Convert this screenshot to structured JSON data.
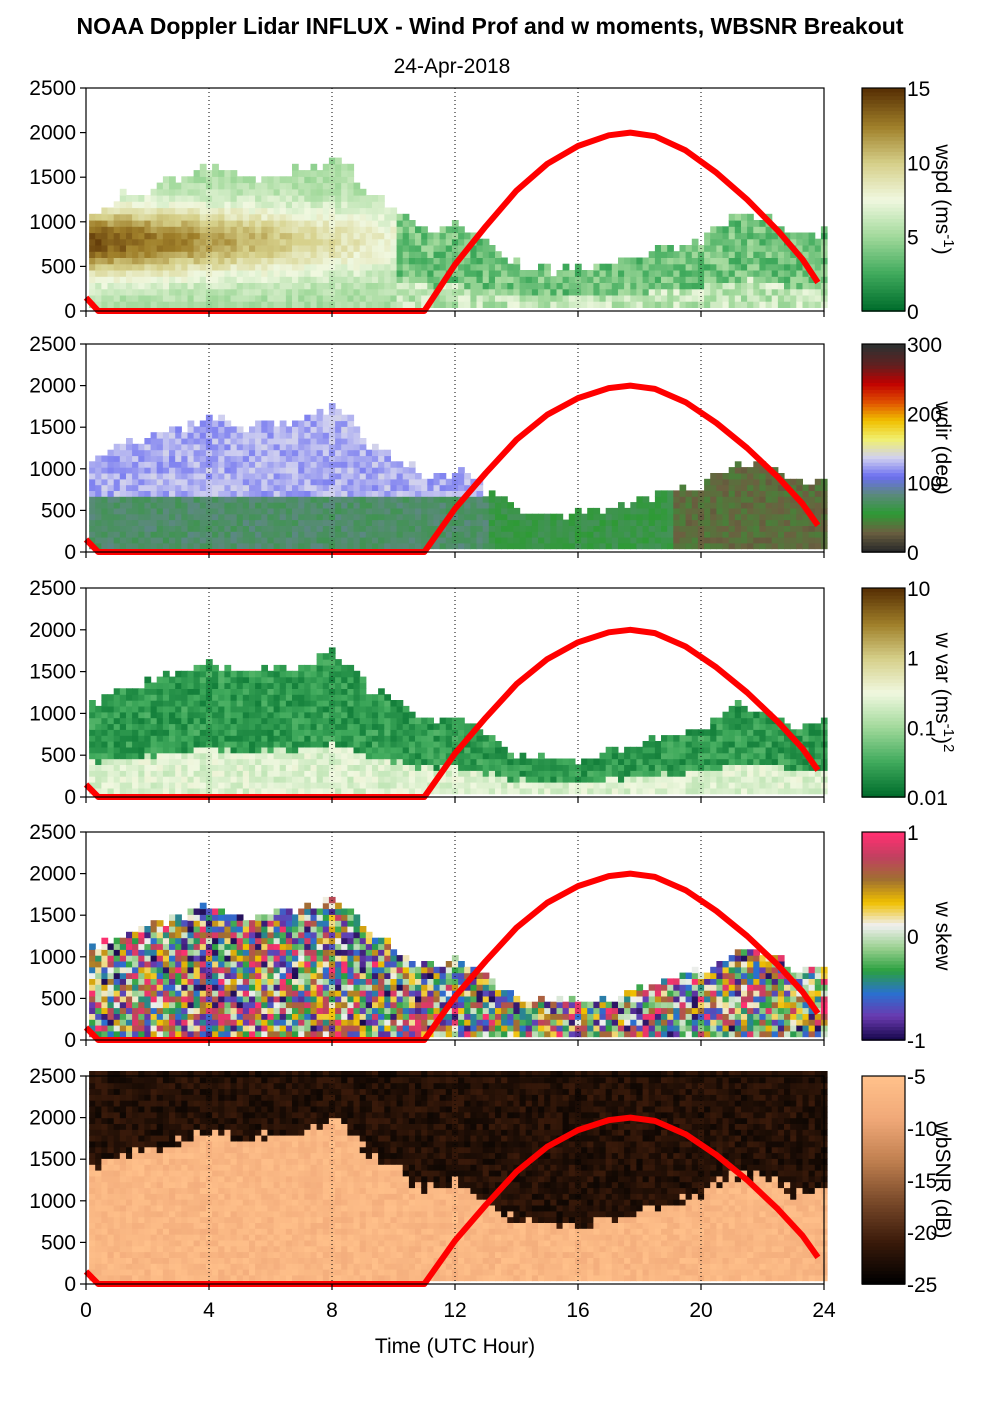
{
  "title": "NOAA Doppler Lidar INFLUX - Wind Prof and w moments, WBSNR Breakout",
  "subtitle": "24-Apr-2018",
  "chart_data": {
    "type": "heatmap",
    "x_axis": {
      "label": "Time (UTC Hour)",
      "range": [
        0,
        24
      ],
      "ticks": [
        0,
        4,
        8,
        12,
        16,
        20,
        24
      ],
      "tick_labels": [
        "0",
        "4",
        "8",
        "12",
        "16",
        "20",
        "24"
      ]
    },
    "y_axis": {
      "range": [
        0,
        2500
      ],
      "ticks": [
        0,
        500,
        1000,
        1500,
        2000,
        2500
      ],
      "tick_labels": [
        "0",
        "500",
        "1000",
        "1500",
        "2000",
        "2500"
      ]
    },
    "grid": "vertical dotted lines at 4, 8, 12, 16, 20, 24",
    "overlay_curve": {
      "color": "#ff0000",
      "description_points": {
        "x": [
          0,
          0.4,
          11.0,
          12,
          13,
          14,
          15,
          16,
          17,
          17.7,
          18.5,
          19.5,
          20.5,
          21.5,
          22.5,
          23.3,
          23.8
        ],
        "y": [
          150,
          0,
          0,
          520,
          950,
          1350,
          1650,
          1850,
          1970,
          2000,
          1960,
          1800,
          1550,
          1250,
          900,
          580,
          320
        ]
      }
    },
    "panels": [
      {
        "id": "wspd",
        "colorbar_label": "wspd (ms",
        "colorbar_label_sup": "-1",
        "colorbar_label_end": ")",
        "colorbar_ticks": [
          "15",
          "10",
          "5",
          "0"
        ],
        "colorbar_range": [
          0,
          15
        ],
        "colormap": [
          "#006d2c",
          "#41ab5d",
          "#a1d99b",
          "#f0f8e0",
          "#d6d08a",
          "#a0802a",
          "#5a3205"
        ]
      },
      {
        "id": "wdir",
        "colorbar_label": "wdir (deg)",
        "colorbar_ticks": [
          "300",
          "200",
          "100",
          "0"
        ],
        "colorbar_range": [
          0,
          360
        ],
        "colormap": [
          "#2a2a2a",
          "#6b6040",
          "#2e9a35",
          "#5a8a7a",
          "#6b6ef0",
          "#d0d0f0",
          "#f0f070",
          "#f0c000",
          "#e05000",
          "#c00000",
          "#602020",
          "#303030"
        ]
      },
      {
        "id": "wvar",
        "colorbar_label": "w var (ms",
        "colorbar_label_sup": "-1",
        "colorbar_label_end": ")",
        "colorbar_label_sup2": "2",
        "colorbar_ticks": [
          "10",
          "1",
          "0.1",
          "0.01"
        ],
        "colorbar_range": [
          0.01,
          10
        ],
        "log_scale": true,
        "colormap": [
          "#006d2c",
          "#41ab5d",
          "#a1d99b",
          "#f0f8e0",
          "#d6d08a",
          "#a0802a",
          "#5a3205"
        ]
      },
      {
        "id": "wskew",
        "colorbar_label": "w skew",
        "colorbar_ticks": [
          "1",
          "0",
          "-1"
        ],
        "colorbar_range": [
          -1,
          1
        ],
        "colormap": [
          "#1a0a50",
          "#6a3ab0",
          "#2a70d0",
          "#2aa040",
          "#9ad090",
          "#f0f0f0",
          "#f0c000",
          "#a07030",
          "#c04060",
          "#ff3070"
        ]
      },
      {
        "id": "wbsnr",
        "colorbar_label": "wbSNR (dB)",
        "colorbar_ticks": [
          "-5",
          "-10",
          "-15",
          "-20",
          "-25"
        ],
        "colorbar_range": [
          -25,
          -5
        ],
        "colormap": [
          "#000000",
          "#3a1a0a",
          "#7a4a2a",
          "#c08050",
          "#f0a878",
          "#ffc08a"
        ]
      }
    ]
  }
}
